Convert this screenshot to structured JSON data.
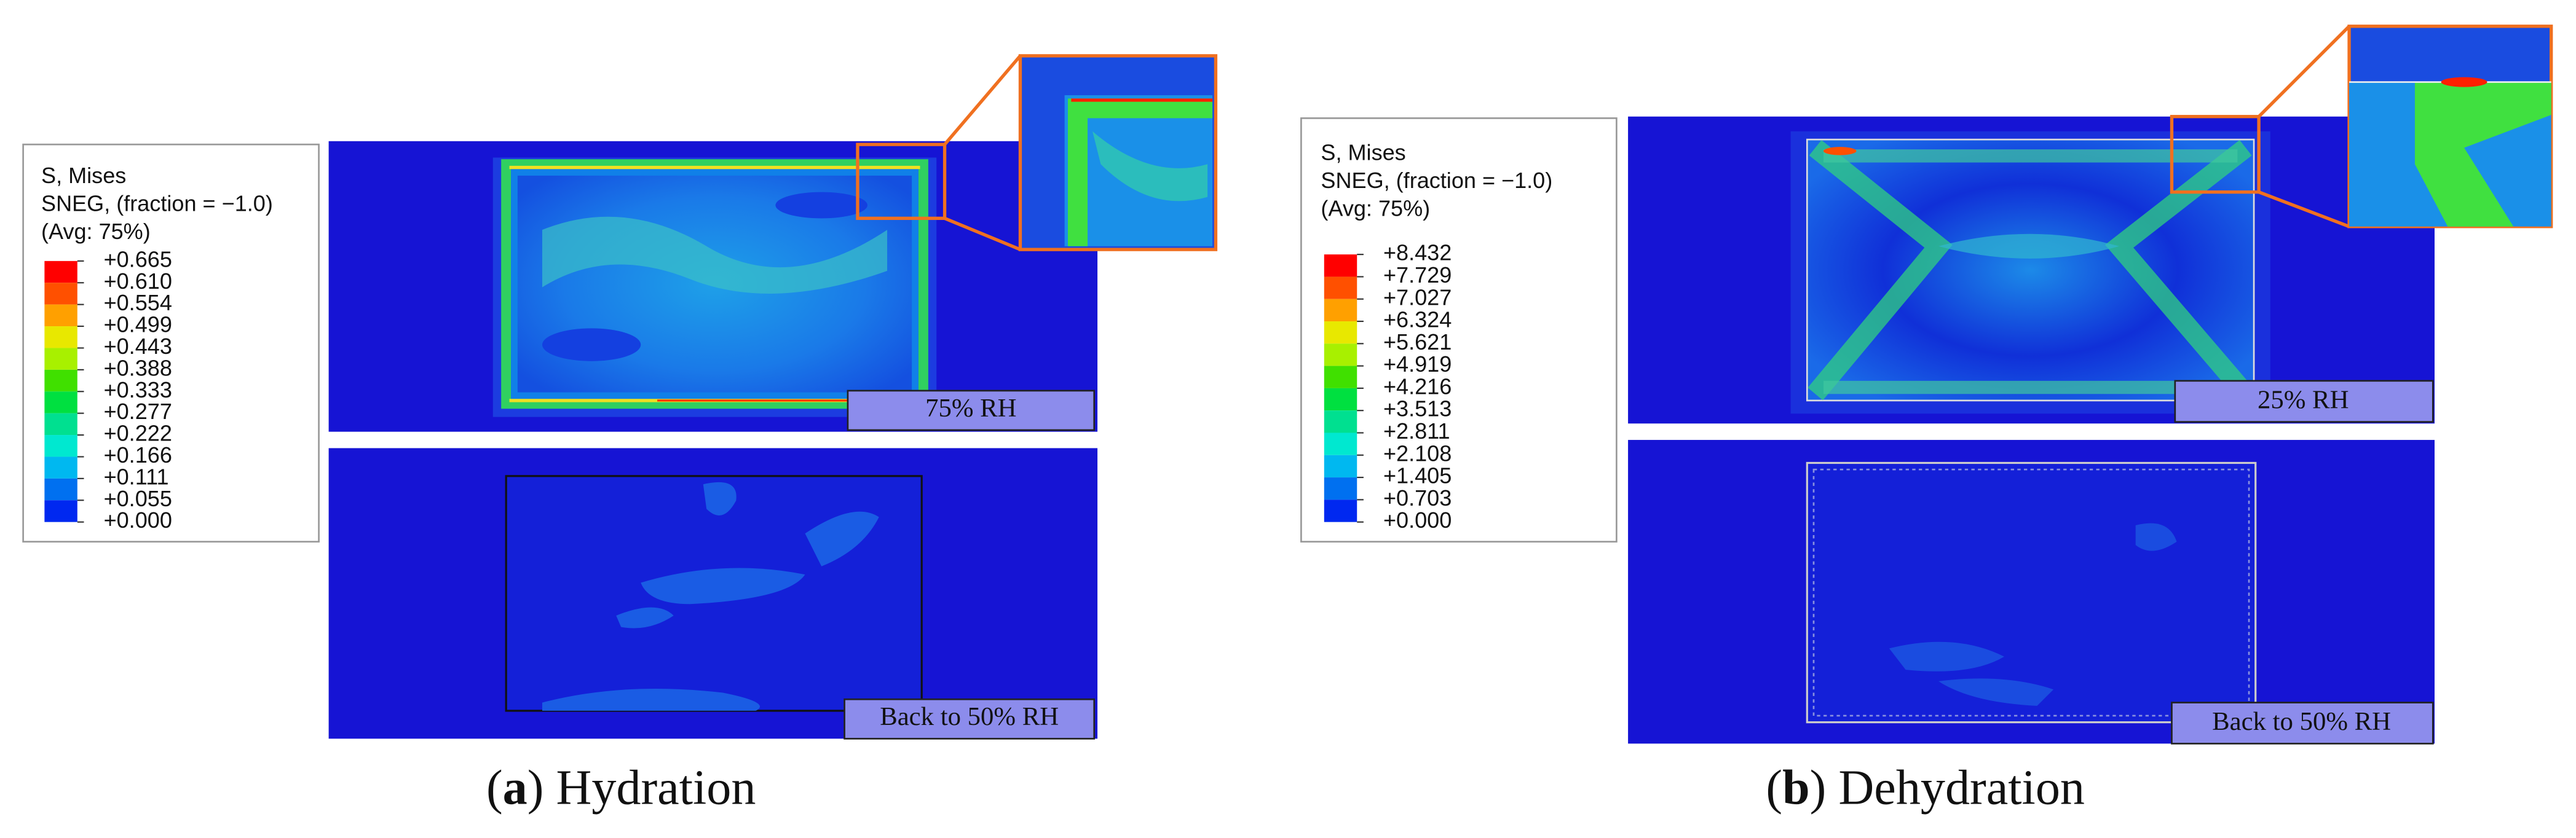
{
  "panels": [
    {
      "legend": {
        "title_lines": [
          "S, Mises",
          "SNEG, (fraction = −1.0)",
          "(Avg: 75%)"
        ],
        "values": [
          "+0.665",
          "+0.610",
          "+0.554",
          "+0.499",
          "+0.443",
          "+0.388",
          "+0.333",
          "+0.277",
          "+0.222",
          "+0.166",
          "+0.111",
          "+0.055",
          "+0.000"
        ],
        "colors": [
          "#ff0000",
          "#ff5000",
          "#ffa000",
          "#e8e800",
          "#a8f000",
          "#40e000",
          "#00e040",
          "#00e090",
          "#00e8d0",
          "#00b8f0",
          "#0070f0",
          "#0028f0"
        ]
      },
      "top_label": "75% RH",
      "bottom_label": "Back to 50% RH",
      "caption": [
        "(",
        "a",
        ") Hydration"
      ]
    },
    {
      "legend": {
        "title_lines": [
          "S, Mises",
          "SNEG, (fraction = −1.0)",
          "(Avg: 75%)"
        ],
        "values": [
          "+8.432",
          "+7.729",
          "+7.027",
          "+6.324",
          "+5.621",
          "+4.919",
          "+4.216",
          "+3.513",
          "+2.811",
          "+2.108",
          "+1.405",
          "+0.703",
          "+0.000"
        ],
        "colors": [
          "#ff0000",
          "#ff5000",
          "#ffa000",
          "#e8e800",
          "#a8f000",
          "#40e000",
          "#00e040",
          "#00e090",
          "#00e8d0",
          "#00b8f0",
          "#0070f0",
          "#0028f0"
        ]
      },
      "top_label": "25% RH",
      "bottom_label": "Back to 50% RH",
      "caption": [
        "(",
        "b",
        ") Dehydration"
      ]
    }
  ]
}
